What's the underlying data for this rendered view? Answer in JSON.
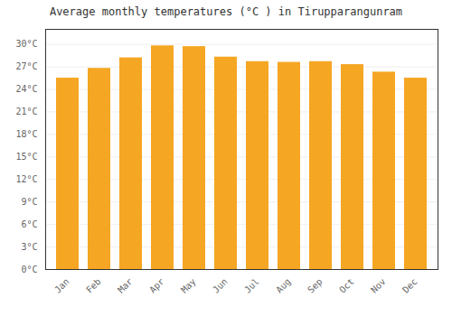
{
  "chart_data": {
    "type": "bar",
    "title": "Average monthly temperatures (°C ) in Tirupparangunram",
    "categories": [
      "Jan",
      "Feb",
      "Mar",
      "Apr",
      "May",
      "Jun",
      "Jul",
      "Aug",
      "Sep",
      "Oct",
      "Nov",
      "Dec"
    ],
    "values": [
      25.5,
      26.8,
      28.2,
      29.8,
      29.7,
      28.3,
      27.7,
      27.6,
      27.7,
      27.3,
      26.3,
      25.5
    ],
    "color": "#F5A623",
    "ylim": [
      0,
      32
    ],
    "yticks": [
      {
        "value": 0,
        "label": "0°C"
      },
      {
        "value": 3,
        "label": "3°C"
      },
      {
        "value": 6,
        "label": "6°C"
      },
      {
        "value": 9,
        "label": "9°C"
      },
      {
        "value": 12,
        "label": "12°C"
      },
      {
        "value": 15,
        "label": "15°C"
      },
      {
        "value": 18,
        "label": "18°C"
      },
      {
        "value": 21,
        "label": "21°C"
      },
      {
        "value": 24,
        "label": "24°C"
      },
      {
        "value": 27,
        "label": "27°C"
      },
      {
        "value": 30,
        "label": "30°C"
      }
    ],
    "grid": true
  }
}
